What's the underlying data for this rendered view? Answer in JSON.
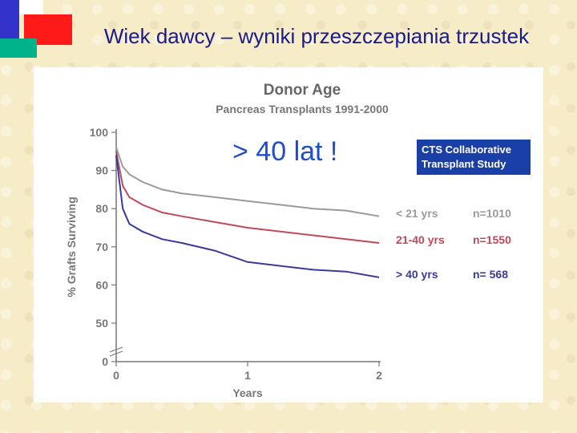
{
  "slide": {
    "title": "Wiek dawcy – wyniki przeszczepiania trzustek",
    "overlay_text": "> 40 lat !",
    "badge_line1": "CTS Collaborative",
    "badge_line2": "Transplant Study"
  },
  "colors": {
    "background": "#f6ecc8",
    "title": "#1a1a8c",
    "overlay": "#1f4ec9",
    "badge": "#1a3fa6",
    "logo_blue": "#3333cc",
    "logo_red": "#ff1a1a",
    "logo_teal": "#00b38a"
  },
  "chart_data": {
    "type": "line",
    "title": "Donor Age",
    "subtitle": "Pancreas Transplants 1991-2000",
    "xlabel": "Years",
    "ylabel": "% Grafts Surviving",
    "xlim": [
      0,
      2
    ],
    "ylim": [
      0,
      100
    ],
    "axis_break": "between 0 and 50",
    "xticks": [
      "0",
      "1",
      "2"
    ],
    "yticks": [
      "0",
      "50",
      "60",
      "70",
      "80",
      "90",
      "100"
    ],
    "grid": false,
    "legend_position": "right",
    "series": [
      {
        "name": "< 21 yrs",
        "n_label": "n=1010",
        "color": "#9a9a9a",
        "x": [
          0,
          0.05,
          0.1,
          0.2,
          0.35,
          0.5,
          0.75,
          1.0,
          1.25,
          1.5,
          1.75,
          2.0
        ],
        "y": [
          96,
          91,
          89,
          87,
          85,
          84,
          83,
          82,
          81,
          80,
          79.5,
          78
        ]
      },
      {
        "name": "21-40 yrs",
        "n_label": "n=1550",
        "color": "#c04a5a",
        "x": [
          0,
          0.05,
          0.1,
          0.2,
          0.35,
          0.5,
          0.75,
          1.0,
          1.25,
          1.5,
          1.75,
          2.0
        ],
        "y": [
          95,
          86,
          83,
          81,
          79,
          78,
          76.5,
          75,
          74,
          73,
          72,
          71
        ]
      },
      {
        "name": "> 40 yrs",
        "n_label": "n=  568",
        "color": "#3a3a9a",
        "x": [
          0,
          0.05,
          0.1,
          0.2,
          0.35,
          0.5,
          0.75,
          1.0,
          1.25,
          1.5,
          1.75,
          2.0
        ],
        "y": [
          94,
          80,
          76,
          74,
          72,
          71,
          69,
          66,
          65,
          64,
          63.5,
          62
        ]
      }
    ]
  }
}
